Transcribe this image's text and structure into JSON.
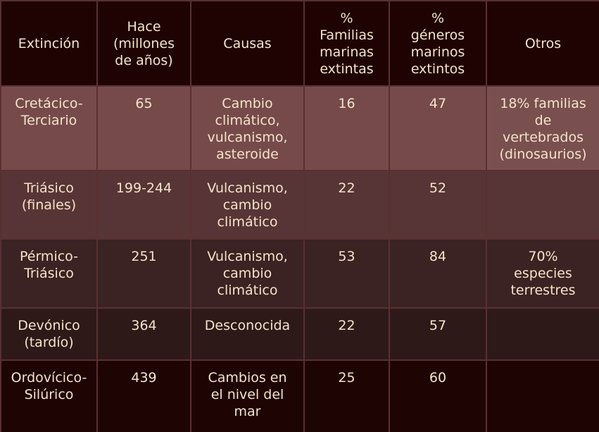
{
  "table": {
    "headers": [
      "Extinción",
      "Hace\n(millones\nde años)",
      "Causas",
      "%\nFamilias\nmarinas\nextintas",
      "%\ngéneros\nmarinos\nextintos",
      "Otros"
    ],
    "rows": [
      [
        "Cretácico-\nTerciario",
        "65",
        "Cambio\nclimático,\nvulcanismo,\nasteroide",
        "16",
        "47",
        "18% familias\nde\nvertebrados\n(dinosaurios)"
      ],
      [
        "Triásico\n(finales)",
        "199-244",
        "Vulcanismo,\ncambio\nclimático",
        "22",
        "52",
        ""
      ],
      [
        "Pérmico-\nTriásico",
        "251",
        "Vulcanismo,\ncambio\nclimático",
        "53",
        "84",
        "70%\nespecies\nterrestres"
      ],
      [
        "Devónico\n(tardío)",
        "364",
        "Desconocida",
        "22",
        "57",
        ""
      ],
      [
        "Ordovícico-\nSilúrico",
        "439",
        "Cambios en\nel nivel del\nmar",
        "25",
        "60",
        ""
      ]
    ]
  }
}
